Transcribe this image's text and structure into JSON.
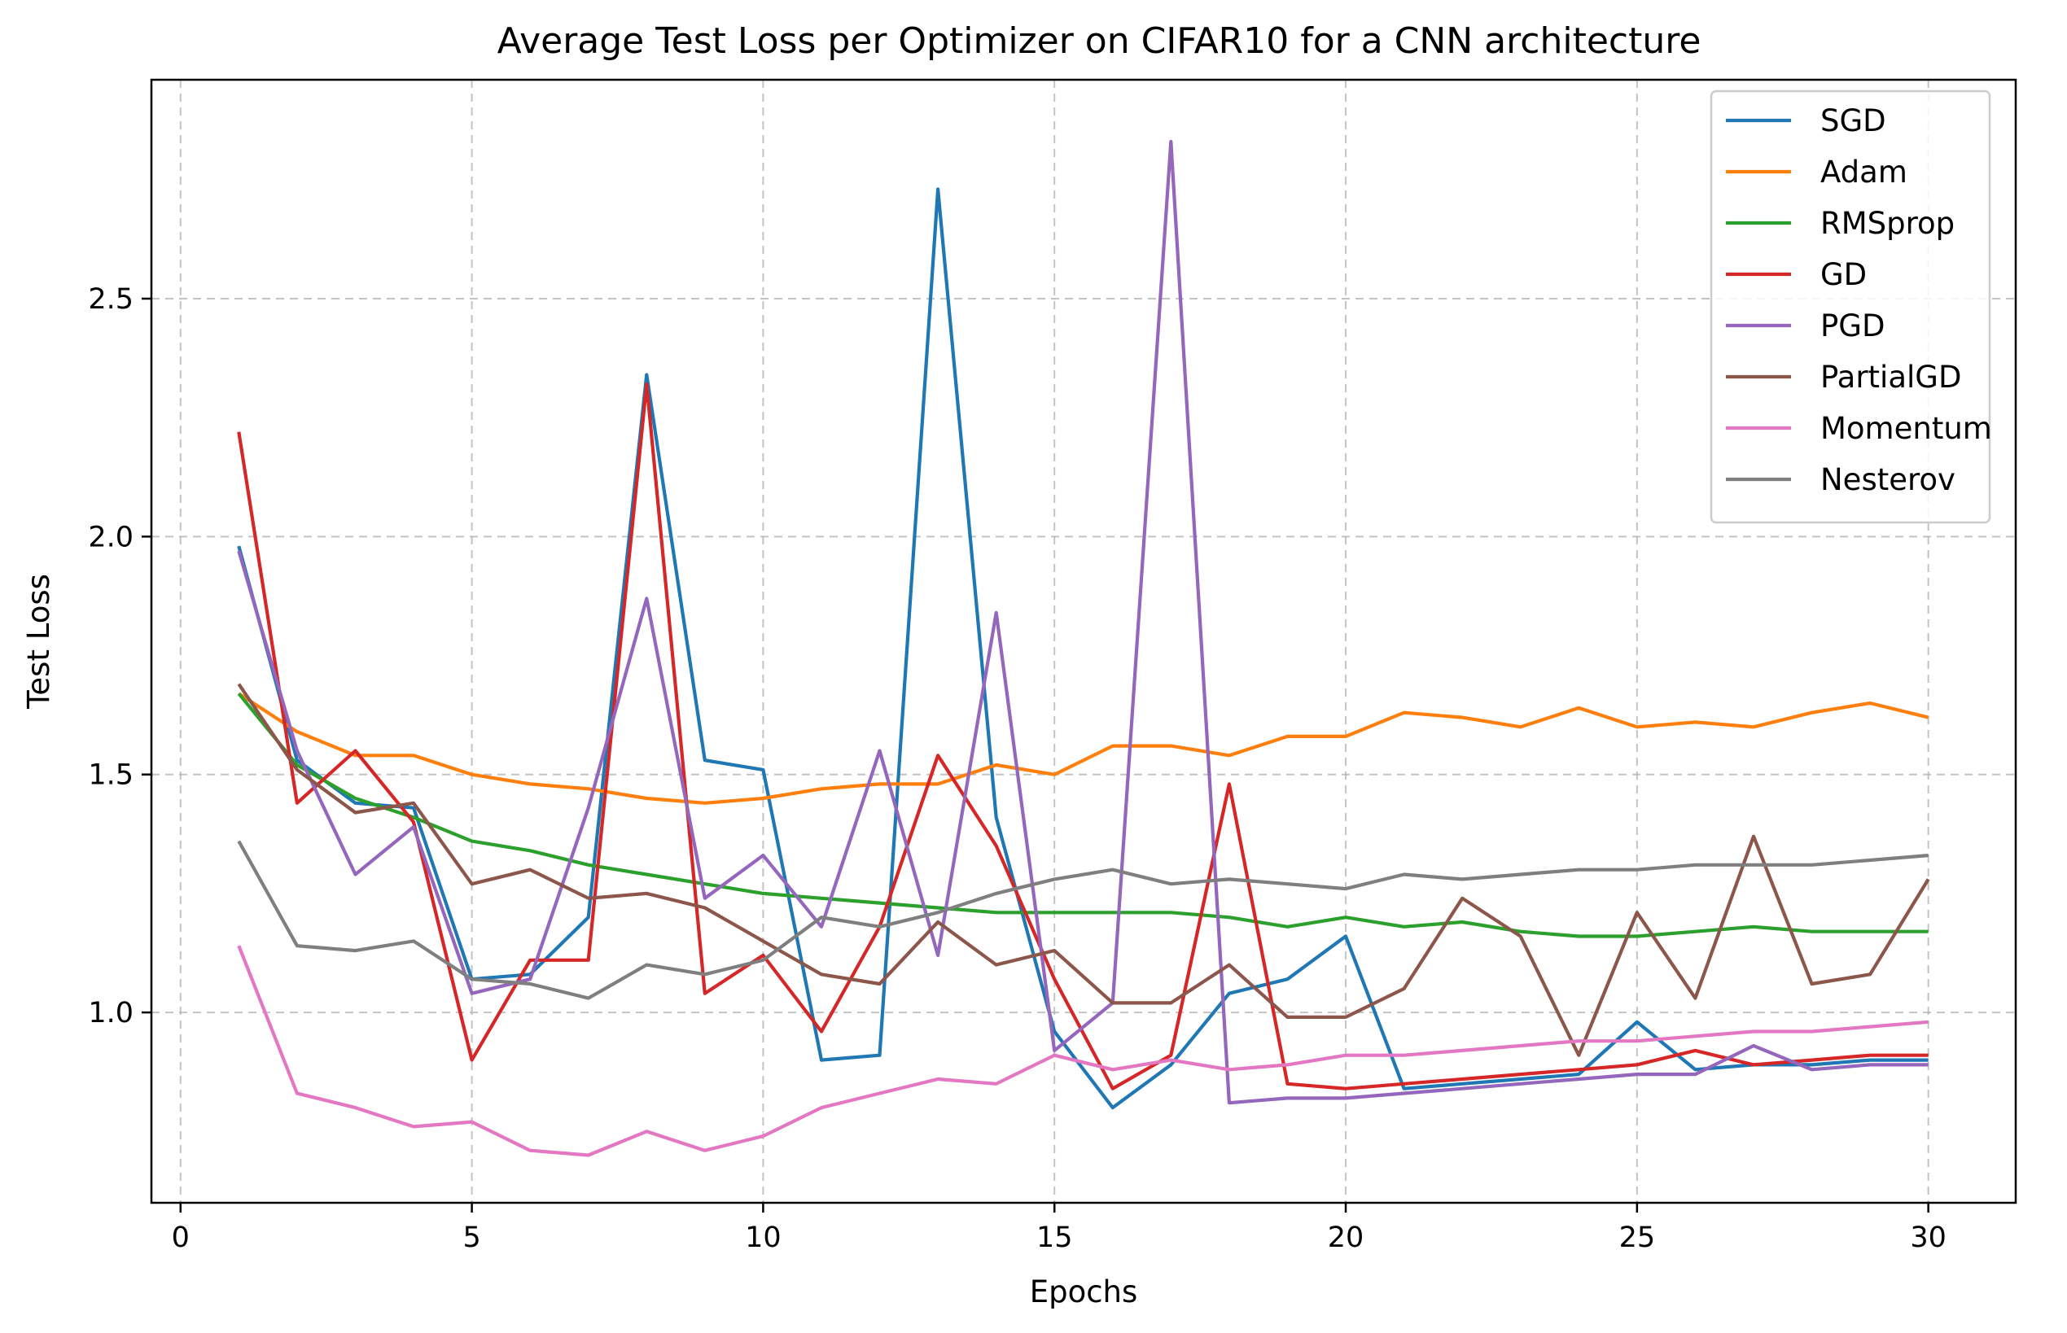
{
  "chart_data": {
    "type": "line",
    "title": "Average Test Loss per Optimizer on CIFAR10 for a CNN architecture",
    "xlabel": "Epochs",
    "ylabel": "Test Loss",
    "xlim": [
      -0.5,
      31.5
    ],
    "ylim": [
      0.6,
      2.96
    ],
    "xticks": [
      0,
      5,
      10,
      15,
      20,
      25,
      30
    ],
    "yticks": [
      1.0,
      1.5,
      2.0,
      2.5
    ],
    "xtick_labels": [
      "0",
      "5",
      "10",
      "15",
      "20",
      "25",
      "30"
    ],
    "ytick_labels": [
      "1.0",
      "1.5",
      "2.0",
      "2.5"
    ],
    "grid": true,
    "legend_position": "top-right",
    "x": [
      1,
      2,
      3,
      4,
      5,
      6,
      7,
      8,
      9,
      10,
      11,
      12,
      13,
      14,
      15,
      16,
      17,
      18,
      19,
      20,
      21,
      22,
      23,
      24,
      25,
      26,
      27,
      28,
      29,
      30
    ],
    "series": [
      {
        "name": "SGD",
        "color": "#1f77b4",
        "values": [
          1.98,
          1.53,
          1.44,
          1.43,
          1.07,
          1.08,
          1.2,
          2.34,
          1.53,
          1.51,
          0.9,
          0.91,
          2.73,
          1.41,
          0.96,
          0.8,
          0.89,
          1.04,
          1.07,
          1.16,
          0.84,
          0.85,
          0.86,
          0.87,
          0.98,
          0.88,
          0.89,
          0.89,
          0.9,
          0.9
        ]
      },
      {
        "name": "Adam",
        "color": "#ff7f0e",
        "values": [
          1.67,
          1.59,
          1.54,
          1.54,
          1.5,
          1.48,
          1.47,
          1.45,
          1.44,
          1.45,
          1.47,
          1.48,
          1.48,
          1.52,
          1.5,
          1.56,
          1.56,
          1.54,
          1.58,
          1.58,
          1.63,
          1.62,
          1.6,
          1.64,
          1.6,
          1.61,
          1.6,
          1.63,
          1.65,
          1.62
        ]
      },
      {
        "name": "RMSprop",
        "color": "#2ca02c",
        "values": [
          1.67,
          1.52,
          1.45,
          1.41,
          1.36,
          1.34,
          1.31,
          1.29,
          1.27,
          1.25,
          1.24,
          1.23,
          1.22,
          1.21,
          1.21,
          1.21,
          1.21,
          1.2,
          1.18,
          1.2,
          1.18,
          1.19,
          1.17,
          1.16,
          1.16,
          1.17,
          1.18,
          1.17,
          1.17,
          1.17
        ]
      },
      {
        "name": "GD",
        "color": "#d62728",
        "values": [
          2.22,
          1.44,
          1.55,
          1.4,
          0.9,
          1.11,
          1.11,
          2.32,
          1.04,
          1.12,
          0.96,
          1.18,
          1.54,
          1.35,
          1.07,
          0.84,
          0.91,
          1.48,
          0.85,
          0.84,
          0.85,
          0.86,
          0.87,
          0.88,
          0.89,
          0.92,
          0.89,
          0.9,
          0.91,
          0.91
        ]
      },
      {
        "name": "PGD",
        "color": "#9467bd",
        "values": [
          1.97,
          1.55,
          1.29,
          1.39,
          1.04,
          1.07,
          1.43,
          1.87,
          1.24,
          1.33,
          1.18,
          1.55,
          1.12,
          1.84,
          0.92,
          1.02,
          2.83,
          0.81,
          0.82,
          0.82,
          0.83,
          0.84,
          0.85,
          0.86,
          0.87,
          0.87,
          0.93,
          0.88,
          0.89,
          0.89
        ]
      },
      {
        "name": "PartialGD",
        "color": "#8c564b",
        "values": [
          1.69,
          1.51,
          1.42,
          1.44,
          1.27,
          1.3,
          1.24,
          1.25,
          1.22,
          1.15,
          1.08,
          1.06,
          1.19,
          1.1,
          1.13,
          1.02,
          1.02,
          1.1,
          0.99,
          0.99,
          1.05,
          1.24,
          1.16,
          0.91,
          1.21,
          1.03,
          1.37,
          1.06,
          1.08,
          1.28
        ]
      },
      {
        "name": "Momentum",
        "color": "#e377c2",
        "values": [
          1.14,
          0.83,
          0.8,
          0.76,
          0.77,
          0.71,
          0.7,
          0.75,
          0.71,
          0.74,
          0.8,
          0.83,
          0.86,
          0.85,
          0.91,
          0.88,
          0.9,
          0.88,
          0.89,
          0.91,
          0.91,
          0.92,
          0.93,
          0.94,
          0.94,
          0.95,
          0.96,
          0.96,
          0.97,
          0.98
        ]
      },
      {
        "name": "Nesterov",
        "color": "#7f7f7f",
        "values": [
          1.36,
          1.14,
          1.13,
          1.15,
          1.07,
          1.06,
          1.03,
          1.1,
          1.08,
          1.11,
          1.2,
          1.18,
          1.21,
          1.25,
          1.28,
          1.3,
          1.27,
          1.28,
          1.27,
          1.26,
          1.29,
          1.28,
          1.29,
          1.3,
          1.3,
          1.31,
          1.31,
          1.31,
          1.32,
          1.33
        ]
      }
    ]
  }
}
